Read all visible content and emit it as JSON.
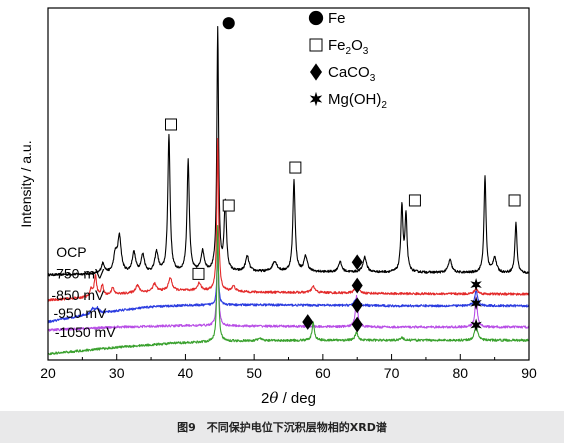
{
  "caption": "图9　不同保护电位下沉积层物相的XRD谱",
  "chart_data": {
    "type": "line",
    "xlabel_prefix": "2",
    "xlabel_theta": "θ",
    "xlabel_suffix": " / deg",
    "ylabel": "Intensity / a.u.",
    "xlim": [
      20,
      90
    ],
    "x_ticks": [
      20,
      30,
      40,
      50,
      60,
      70,
      80,
      90
    ],
    "x_tick_labels": [
      "20",
      "30",
      "40",
      "50",
      "60",
      "70",
      "80",
      "90"
    ],
    "legend": [
      {
        "symbol": "circle",
        "parts": [
          {
            "t": "Fe"
          }
        ]
      },
      {
        "symbol": "square",
        "parts": [
          {
            "t": "Fe"
          },
          {
            "t": "2",
            "sub": true
          },
          {
            "t": "O"
          },
          {
            "t": "3",
            "sub": true
          }
        ]
      },
      {
        "symbol": "diamond",
        "parts": [
          {
            "t": "CaCO"
          },
          {
            "t": "3",
            "sub": true
          }
        ]
      },
      {
        "symbol": "star",
        "parts": [
          {
            "t": "Mg(OH)"
          },
          {
            "t": "2",
            "sub": true
          }
        ]
      }
    ],
    "series": [
      {
        "name": "OCP",
        "color": "#000000",
        "baseline": [
          [
            20,
            0.93
          ],
          [
            30,
            0.95
          ],
          [
            50,
            0.99
          ],
          [
            70,
            0.98
          ],
          [
            90,
            0.96
          ]
        ],
        "peaks": [
          [
            28.0,
            0.2,
            0.3
          ],
          [
            29.8,
            0.35,
            0.3
          ],
          [
            30.4,
            0.7,
            0.3
          ],
          [
            32.5,
            0.4,
            0.3
          ],
          [
            33.8,
            0.35,
            0.3
          ],
          [
            35.8,
            0.4,
            0.3
          ],
          [
            37.6,
            2.7,
            0.2
          ],
          [
            40.4,
            2.2,
            0.2
          ],
          [
            42.5,
            0.4,
            0.3
          ],
          [
            44.7,
            4.8,
            0.15
          ],
          [
            45.8,
            1.35,
            0.2
          ],
          [
            49.0,
            0.3,
            0.3
          ],
          [
            53.0,
            0.2,
            0.4
          ],
          [
            55.8,
            1.8,
            0.2
          ],
          [
            57.5,
            0.3,
            0.3
          ],
          [
            62.5,
            0.2,
            0.3
          ],
          [
            66.1,
            0.3,
            0.3
          ],
          [
            71.5,
            1.3,
            0.18
          ],
          [
            72.1,
            1.1,
            0.18
          ],
          [
            78.5,
            0.25,
            0.3
          ],
          [
            83.6,
            1.9,
            0.18
          ],
          [
            85.0,
            0.3,
            0.3
          ],
          [
            88.1,
            1.0,
            0.18
          ]
        ]
      },
      {
        "name": "-750 mV",
        "color": "#e32a2a",
        "baseline": [
          [
            20,
            0.43
          ],
          [
            25,
            0.48
          ],
          [
            30,
            0.55
          ],
          [
            37,
            0.62
          ],
          [
            42,
            0.62
          ],
          [
            50,
            0.59
          ],
          [
            60,
            0.58
          ],
          [
            70,
            0.56
          ],
          [
            90,
            0.55
          ]
        ],
        "peaks": [
          [
            26.3,
            0.15,
            0.2
          ],
          [
            26.9,
            0.4,
            0.2
          ],
          [
            27.9,
            0.2,
            0.2
          ],
          [
            29.4,
            0.15,
            0.2
          ],
          [
            33.0,
            0.15,
            0.3
          ],
          [
            35.5,
            0.15,
            0.3
          ],
          [
            37.8,
            0.25,
            0.3
          ],
          [
            42.0,
            0.15,
            0.3
          ],
          [
            44.7,
            3.0,
            0.15
          ],
          [
            47.0,
            0.1,
            0.3
          ],
          [
            58.6,
            0.12,
            0.3
          ],
          [
            64.9,
            0.15,
            0.3
          ],
          [
            82.3,
            0.1,
            0.3
          ]
        ]
      },
      {
        "name": "-850 mV",
        "color": "#2b3ce0",
        "baseline": [
          [
            20,
            0.0
          ],
          [
            25,
            0.13
          ],
          [
            30,
            0.22
          ],
          [
            35,
            0.3
          ],
          [
            40,
            0.33
          ],
          [
            50,
            0.34
          ],
          [
            60,
            0.33
          ],
          [
            70,
            0.32
          ],
          [
            90,
            0.32
          ]
        ],
        "peaks": [
          [
            26.5,
            0.1,
            0.3
          ],
          [
            27.2,
            0.1,
            0.3
          ],
          [
            44.7,
            1.0,
            0.15
          ],
          [
            64.9,
            0.15,
            0.3
          ],
          [
            82.3,
            0.3,
            0.25
          ]
        ]
      },
      {
        "name": "-950 mV",
        "color": "#b84ee6",
        "baseline": [
          [
            20,
            -0.16
          ],
          [
            30,
            -0.1
          ],
          [
            40,
            -0.07
          ],
          [
            50,
            -0.08
          ],
          [
            60,
            -0.09
          ],
          [
            70,
            -0.1
          ],
          [
            90,
            -0.1
          ]
        ],
        "peaks": [
          [
            44.7,
            1.6,
            0.15
          ],
          [
            64.9,
            0.6,
            0.2
          ],
          [
            82.3,
            0.6,
            0.2
          ]
        ]
      },
      {
        "name": "-1050 mV",
        "color": "#3aa12e",
        "baseline": [
          [
            20,
            -0.63
          ],
          [
            30,
            -0.5
          ],
          [
            38,
            -0.42
          ],
          [
            45,
            -0.38
          ],
          [
            50,
            -0.37
          ],
          [
            60,
            -0.36
          ],
          [
            70,
            -0.36
          ],
          [
            90,
            -0.36
          ]
        ],
        "peaks": [
          [
            44.7,
            2.3,
            0.14
          ],
          [
            50.8,
            0.05,
            0.3
          ],
          [
            58.6,
            0.35,
            0.2
          ],
          [
            64.9,
            0.15,
            0.25
          ],
          [
            71.5,
            0.05,
            0.3
          ],
          [
            82.3,
            0.3,
            0.25
          ]
        ]
      }
    ],
    "series_labels": [
      {
        "text": "OCP",
        "x": 21.2,
        "y": 1.28
      },
      {
        "text": "-750 mV",
        "x": 20.5,
        "y": 0.86
      },
      {
        "text": "-850 mV",
        "x": 20.5,
        "y": 0.43
      },
      {
        "text": "-950 mV",
        "x": 20.8,
        "y": 0.08
      },
      {
        "text": "-1050 mV",
        "x": 21.0,
        "y": -0.3
      }
    ],
    "markers": [
      {
        "symbol": "circle",
        "x": 46.3,
        "y": 5.9
      },
      {
        "symbol": "square",
        "x": 37.9,
        "y": 3.9
      },
      {
        "symbol": "square",
        "x": 46.3,
        "y": 2.3
      },
      {
        "symbol": "square",
        "x": 56.0,
        "y": 3.05
      },
      {
        "symbol": "square",
        "x": 73.4,
        "y": 2.4
      },
      {
        "symbol": "square",
        "x": 87.9,
        "y": 2.4
      },
      {
        "symbol": "square",
        "x": 41.9,
        "y": 0.95
      },
      {
        "symbol": "diamond",
        "x": 65.0,
        "y": 1.18
      },
      {
        "symbol": "diamond",
        "x": 65.0,
        "y": 0.72
      },
      {
        "symbol": "diamond",
        "x": 65.0,
        "y": 0.33
      },
      {
        "symbol": "diamond",
        "x": 57.8,
        "y": 0.0
      },
      {
        "symbol": "diamond",
        "x": 65.0,
        "y": -0.05
      },
      {
        "symbol": "star",
        "x": 82.3,
        "y": 0.74
      },
      {
        "symbol": "star",
        "x": 82.3,
        "y": 0.37
      },
      {
        "symbol": "star",
        "x": 82.3,
        "y": -0.06
      }
    ]
  }
}
